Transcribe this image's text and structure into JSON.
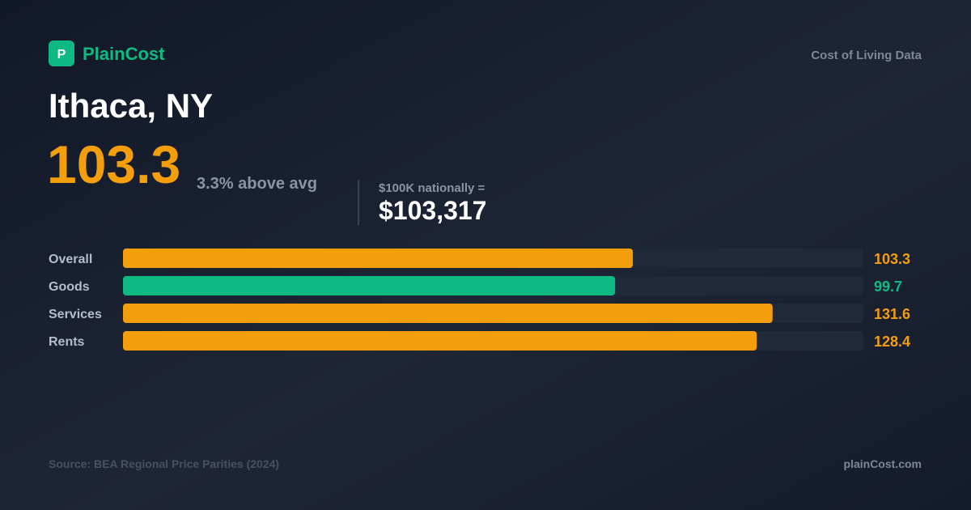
{
  "brand": {
    "logo": "P",
    "name": "PlainCost"
  },
  "tagline": "Cost of Living Data",
  "city": "Ithaca, NY",
  "headline": {
    "index": "103.3",
    "comparison": "3.3% above avg",
    "equivalent_label": "$100K nationally =",
    "equivalent_value": "$103,317"
  },
  "chart_data": {
    "type": "hbar",
    "categories": [
      "Overall",
      "Goods",
      "Services",
      "Rents"
    ],
    "values": [
      103.3,
      99.7,
      131.6,
      128.4
    ],
    "colors": [
      "#f59e0b",
      "#10b981",
      "#f59e0b",
      "#f59e0b"
    ],
    "xlim": [
      0,
      150
    ]
  },
  "footer": {
    "source": "Source: BEA Regional Price Parities (2024)",
    "site": "plainCost.com"
  }
}
